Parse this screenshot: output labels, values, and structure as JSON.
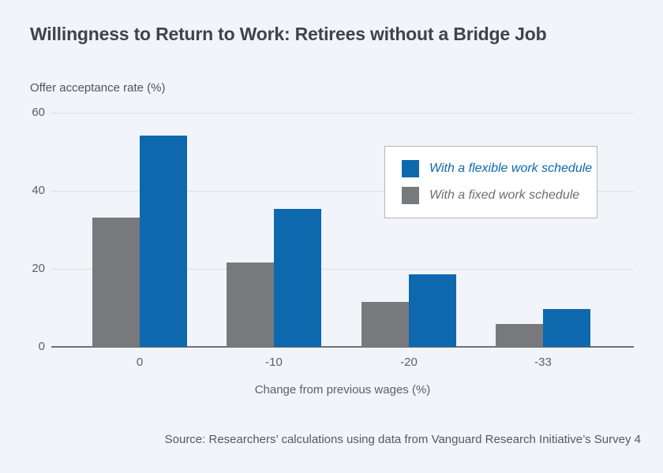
{
  "title": "Willingness to Return to Work: Retirees without a Bridge Job",
  "source_note": "Source: Researchers’ calculations using data from Vanguard Research Initiative’s Survey 4",
  "colors": {
    "background": "#f1f4f8",
    "flexible_blue": "#0d68ae",
    "fixed_gray": "#77797c",
    "gridline": "#d9dee4",
    "axis_line": "#6e7277",
    "title_text": "#3f444a",
    "axis_text": "#5c6167",
    "legend_border": "#b3b7bc",
    "legend_background": "#ffffff"
  },
  "chart_data": {
    "type": "bar",
    "title": "Willingness to Return to Work: Retirees without a Bridge Job",
    "y_axis_caption": "Offer acceptance rate (%)",
    "xlabel": "Change from previous wages (%)",
    "ylabel": "Offer acceptance rate (%)",
    "categories": [
      "0",
      "-10",
      "-20",
      "-33"
    ],
    "series": [
      {
        "name": "With a flexible work schedule",
        "color": "#0d68ae",
        "values": [
          54.1,
          35.4,
          18.5,
          9.7
        ]
      },
      {
        "name": "With a fixed work schedule",
        "color": "#77797c",
        "values": [
          33.2,
          21.7,
          11.5,
          5.9
        ]
      }
    ],
    "ylim": [
      0,
      60
    ],
    "yticks": [
      0,
      20,
      40,
      60
    ],
    "grid": true,
    "legend_position": "upper-right",
    "bar_draw_order_note": "fixed (gray) bar drawn left of flexible (blue) bar in each group"
  }
}
